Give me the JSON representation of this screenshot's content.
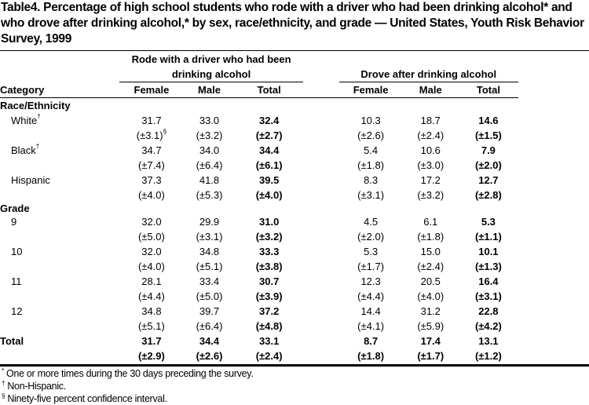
{
  "title": "Table4. Percentage of high school students who rode with a driver who had been drinking alcohol* and who drove after drinking alcohol,* by sex, race/ethnicity, and grade — United States, Youth Risk Behavior Survey, 1999",
  "group_headers": {
    "rode_line1": "Rode with a driver who had been",
    "rode_line2": "drinking alcohol",
    "drove": "Drove after drinking alcohol"
  },
  "columns": {
    "category": "Category",
    "female": "Female",
    "male": "Male",
    "total": "Total"
  },
  "sections": [
    {
      "label": "Race/Ethnicity",
      "rows": [
        {
          "label": "White",
          "mark": "†",
          "ci_mark": "§",
          "rode": [
            "31.7",
            "33.0",
            "32.4"
          ],
          "rode_ci": [
            "(±3.1)",
            "(±3.2)",
            "(±2.7)"
          ],
          "drove": [
            "10.3",
            "18.7",
            "14.6"
          ],
          "drove_ci": [
            "(±2.6)",
            "(±2.4)",
            "(±1.5)"
          ]
        },
        {
          "label": "Black",
          "mark": "†",
          "rode": [
            "34.7",
            "34.0",
            "34.4"
          ],
          "rode_ci": [
            "(±7.4)",
            "(±6.4)",
            "(±6.1)"
          ],
          "drove": [
            "5.4",
            "10.6",
            "7.9"
          ],
          "drove_ci": [
            "(±1.8)",
            "(±3.0)",
            "(±2.0)"
          ]
        },
        {
          "label": "Hispanic",
          "rode": [
            "37.3",
            "41.8",
            "39.5"
          ],
          "rode_ci": [
            "(±4.0)",
            "(±5.3)",
            "(±4.0)"
          ],
          "drove": [
            "8.3",
            "17.2",
            "12.7"
          ],
          "drove_ci": [
            "(±3.1)",
            "(±3.2)",
            "(±2.8)"
          ]
        }
      ]
    },
    {
      "label": "Grade",
      "rows": [
        {
          "label": "9",
          "rode": [
            "32.0",
            "29.9",
            "31.0"
          ],
          "rode_ci": [
            "(±5.0)",
            "(±3.1)",
            "(±3.2)"
          ],
          "drove": [
            "4.5",
            "6.1",
            "5.3"
          ],
          "drove_ci": [
            "(±2.0)",
            "(±1.8)",
            "(±1.1)"
          ]
        },
        {
          "label": "10",
          "rode": [
            "32.0",
            "34.8",
            "33.3"
          ],
          "rode_ci": [
            "(±4.0)",
            "(±5.1)",
            "(±3.8)"
          ],
          "drove": [
            "5.3",
            "15.0",
            "10.1"
          ],
          "drove_ci": [
            "(±1.7)",
            "(±2.4)",
            "(±1.3)"
          ]
        },
        {
          "label": "11",
          "rode": [
            "28.1",
            "33.4",
            "30.7"
          ],
          "rode_ci": [
            "(±4.4)",
            "(±5.0)",
            "(±3.9)"
          ],
          "drove": [
            "12.3",
            "20.5",
            "16.4"
          ],
          "drove_ci": [
            "(±4.4)",
            "(±4.0)",
            "(±3.1)"
          ]
        },
        {
          "label": "12",
          "rode": [
            "34.8",
            "39.7",
            "37.2"
          ],
          "rode_ci": [
            "(±5.1)",
            "(±6.4)",
            "(±4.8)"
          ],
          "drove": [
            "14.4",
            "31.2",
            "22.8"
          ],
          "drove_ci": [
            "(±4.1)",
            "(±5.9)",
            "(±4.2)"
          ]
        }
      ]
    }
  ],
  "total": {
    "label": "Total",
    "rode": [
      "31.7",
      "34.4",
      "33.1"
    ],
    "rode_ci": [
      "(±2.9)",
      "(±2.6)",
      "(±2.4)"
    ],
    "drove": [
      "8.7",
      "17.4",
      "13.1"
    ],
    "drove_ci": [
      "(±1.8)",
      "(±1.7)",
      "(±1.2)"
    ]
  },
  "footnotes": [
    {
      "mark": "*",
      "text": "One or more times during the 30 days preceding the survey."
    },
    {
      "mark": "†",
      "text": "Non-Hispanic."
    },
    {
      "mark": "§",
      "text": "Ninety-five percent confidence interval."
    }
  ]
}
